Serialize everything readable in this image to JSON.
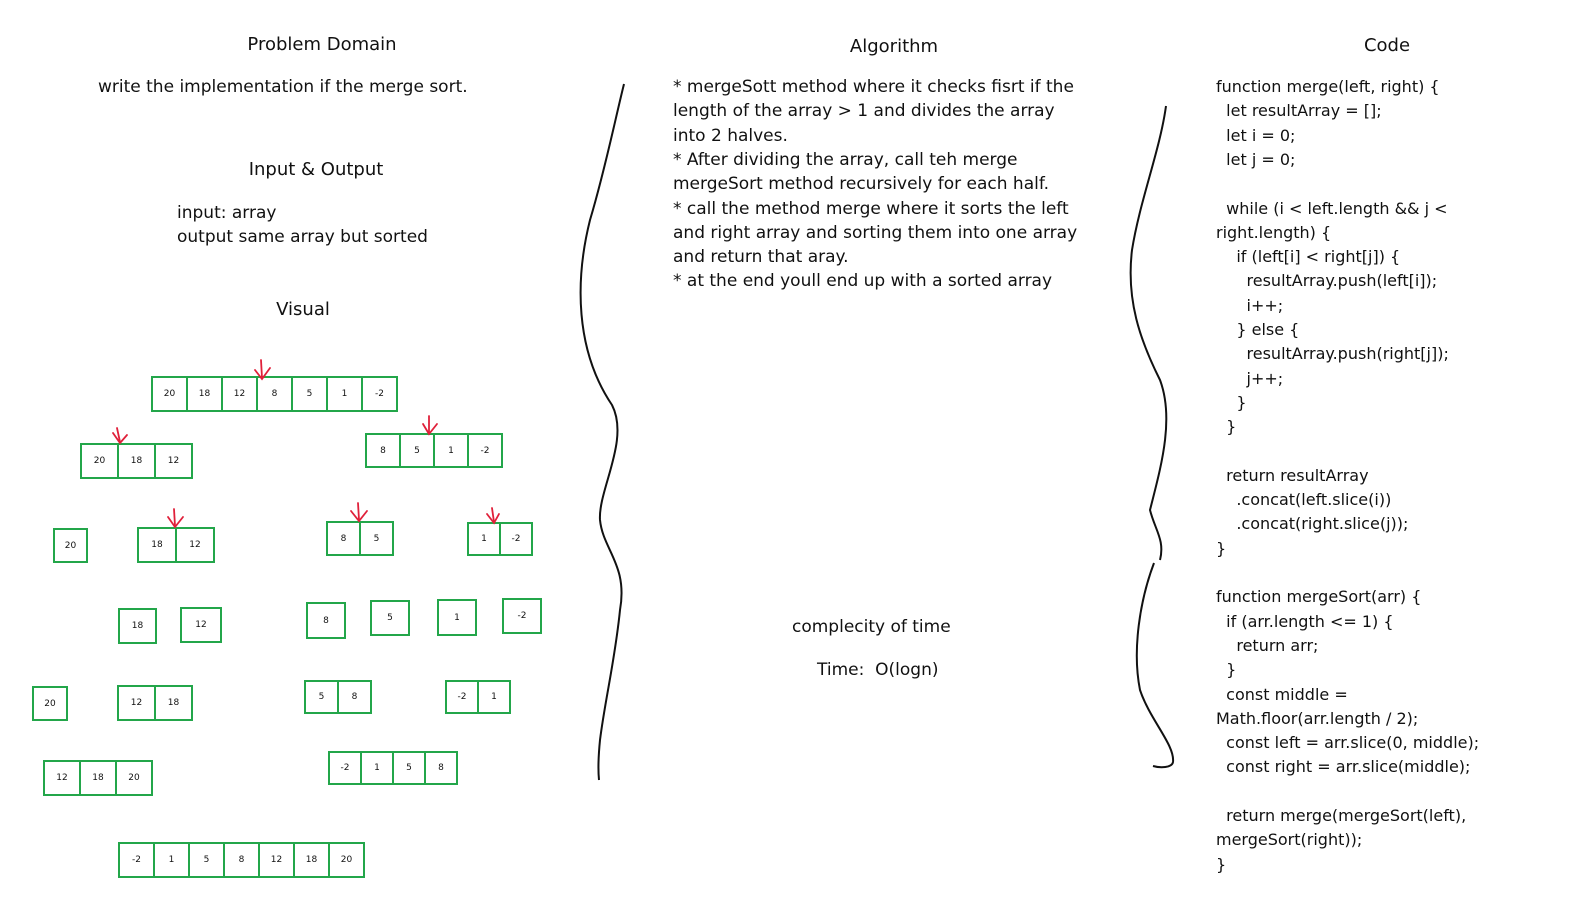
{
  "problem_domain": {
    "heading": "Problem Domain",
    "statement": "write the implementation if the merge sort."
  },
  "input_output": {
    "heading": "Input & Output",
    "input": "input: array",
    "output": "output same array but sorted"
  },
  "visual": {
    "heading": "Visual",
    "arrays": [
      {
        "id": "full",
        "values": [
          "20",
          "18",
          "12",
          "8",
          "5",
          "1",
          "-2"
        ]
      },
      {
        "id": "left-half",
        "values": [
          "20",
          "18",
          "12"
        ]
      },
      {
        "id": "right-half",
        "values": [
          "8",
          "5",
          "1",
          "-2"
        ]
      },
      {
        "id": "l1",
        "values": [
          "20"
        ]
      },
      {
        "id": "l2",
        "values": [
          "18",
          "12"
        ]
      },
      {
        "id": "r1",
        "values": [
          "8",
          "5"
        ]
      },
      {
        "id": "r2",
        "values": [
          "1",
          "-2"
        ]
      },
      {
        "id": "s18",
        "values": [
          "18"
        ]
      },
      {
        "id": "s12",
        "values": [
          "12"
        ]
      },
      {
        "id": "s8",
        "values": [
          "8"
        ]
      },
      {
        "id": "s5",
        "values": [
          "5"
        ]
      },
      {
        "id": "s1",
        "values": [
          "1"
        ]
      },
      {
        "id": "sm2",
        "values": [
          "-2"
        ]
      },
      {
        "id": "m20",
        "values": [
          "20"
        ]
      },
      {
        "id": "m12-18",
        "values": [
          "12",
          "18"
        ]
      },
      {
        "id": "m5-8",
        "values": [
          "5",
          "8"
        ]
      },
      {
        "id": "mm2-1",
        "values": [
          "-2",
          "1"
        ]
      },
      {
        "id": "m12-18-20",
        "values": [
          "12",
          "18",
          "20"
        ]
      },
      {
        "id": "mm2-1-5-8",
        "values": [
          "-2",
          "1",
          "5",
          "8"
        ]
      },
      {
        "id": "final",
        "values": [
          "-2",
          "1",
          "5",
          "8",
          "12",
          "18",
          "20"
        ]
      }
    ]
  },
  "algorithm": {
    "heading": "Algorithm",
    "lines": [
      "* mergeSott method where it checks fisrt if the",
      "length of the array > 1 and divides the array",
      "into 2 halves.",
      "* After dividing the array, call teh merge",
      "mergeSort method recursively for each half.",
      "* call the method merge where it sorts the left",
      "and right array and sorting them into one array",
      "and return that aray.",
      "* at the end youll end up with a sorted array"
    ],
    "complexity_heading": "complecity of time",
    "complexity_value": "Time:  O(logn)"
  },
  "code": {
    "heading": "Code",
    "lines": [
      "function merge(left, right) {",
      "  let resultArray = [];",
      "  let i = 0;",
      "  let j = 0;",
      "",
      "  while (i < left.length && j <",
      "right.length) {",
      "    if (left[i] < right[j]) {",
      "      resultArray.push(left[i]);",
      "      i++;",
      "    } else {",
      "      resultArray.push(right[j]);",
      "      j++;",
      "    }",
      "  }",
      "",
      "  return resultArray",
      "    .concat(left.slice(i))",
      "    .concat(right.slice(j));",
      "}",
      "",
      "function mergeSort(arr) {",
      "  if (arr.length <= 1) {",
      "    return arr;",
      "  }",
      "  const middle =",
      "Math.floor(arr.length / 2);",
      "  const left = arr.slice(0, middle);",
      "  const right = arr.slice(middle);",
      "",
      "  return merge(mergeSort(left),",
      "mergeSort(right));",
      "}"
    ]
  },
  "colors": {
    "box": "#23a64a",
    "arrow": "#e0203a",
    "ink": "#111111"
  }
}
